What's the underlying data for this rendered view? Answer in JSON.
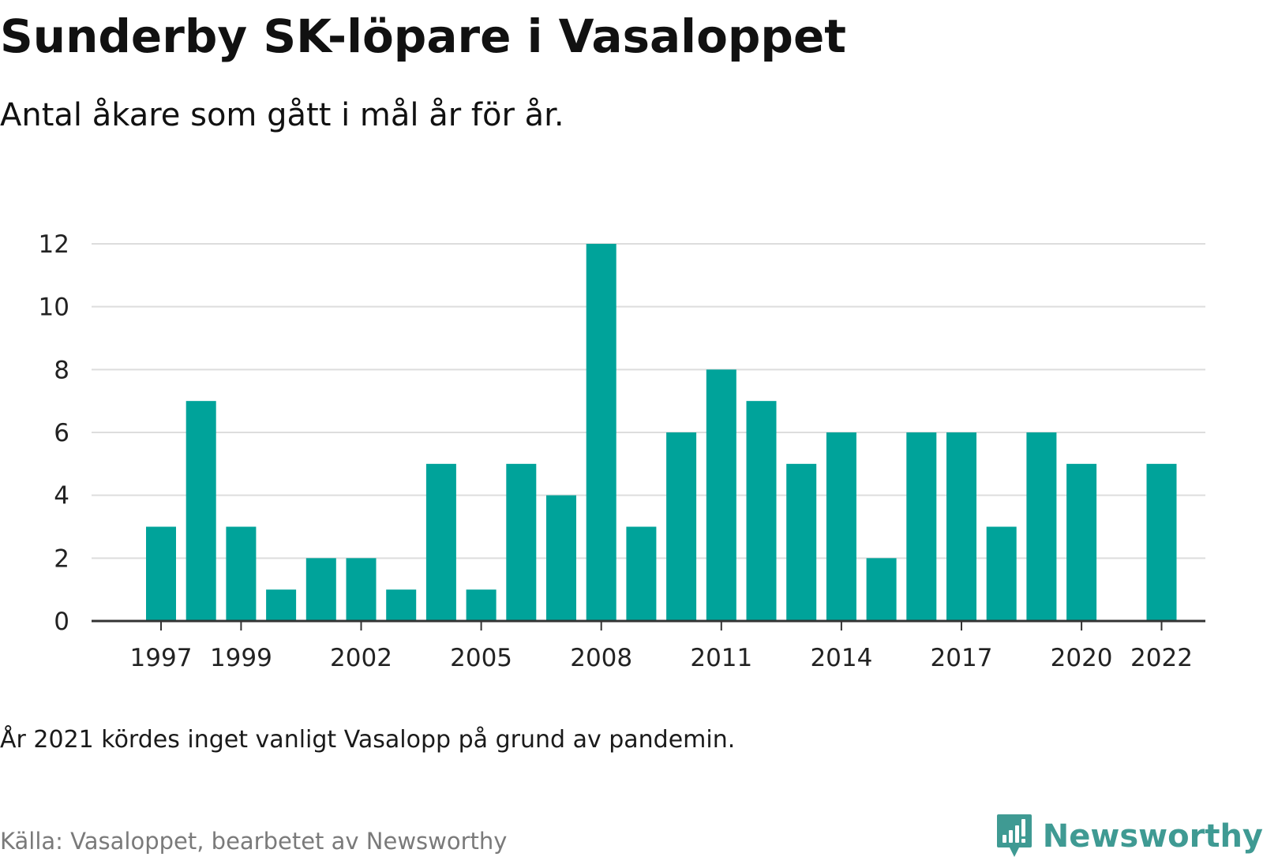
{
  "title": "Sunderby SK-löpare i Vasaloppet",
  "subtitle": "Antal åkare som gått i mål år för år.",
  "note": "År 2021 kördes inget vanligt Vasalopp på grund av pandemin.",
  "source": "Källa: Vasaloppet, bearbetet av Newsworthy",
  "brand": {
    "name": "Newsworthy",
    "icon": "newsworthy-logo-icon",
    "color": "#3f9a93"
  },
  "colors": {
    "bar": "#00a39a",
    "grid": "#dddddd",
    "axis": "#333333"
  },
  "chart_data": {
    "type": "bar",
    "categories": [
      1997,
      1998,
      1999,
      2000,
      2001,
      2002,
      2003,
      2004,
      2005,
      2006,
      2007,
      2008,
      2009,
      2010,
      2011,
      2012,
      2013,
      2014,
      2015,
      2016,
      2017,
      2018,
      2019,
      2020,
      2021,
      2022
    ],
    "values": [
      3,
      7,
      3,
      1,
      2,
      2,
      1,
      5,
      1,
      5,
      4,
      12,
      3,
      6,
      8,
      7,
      5,
      6,
      2,
      6,
      6,
      3,
      6,
      5,
      null,
      5
    ],
    "x_tick_labels": [
      "1997",
      "1999",
      "2002",
      "2005",
      "2008",
      "2011",
      "2014",
      "2017",
      "2020",
      "2022"
    ],
    "y_tick_labels": [
      "0",
      "2",
      "4",
      "6",
      "8",
      "10",
      "12"
    ],
    "ylim": [
      0,
      12
    ],
    "grid": true,
    "legend": false,
    "title": "Sunderby SK-löpare i Vasaloppet",
    "xlabel": "",
    "ylabel": ""
  }
}
